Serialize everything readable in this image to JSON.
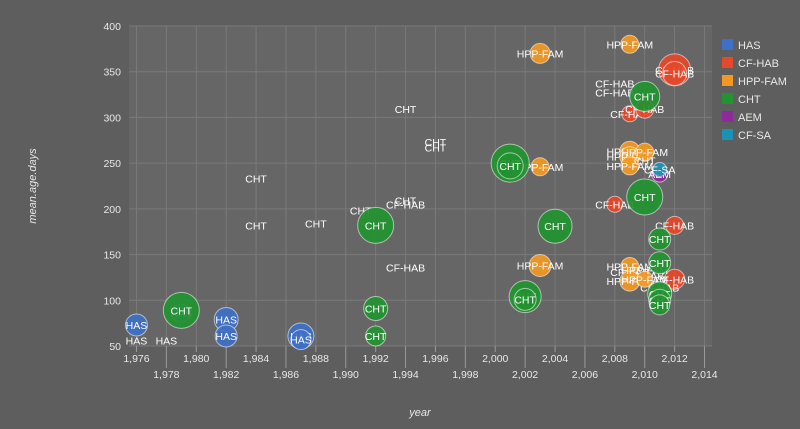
{
  "chart_data": {
    "type": "scatter",
    "title": "",
    "xlabel": "year",
    "ylabel": "mean.age.days",
    "xlim": [
      1975.5,
      2014.5
    ],
    "ylim": [
      50,
      400
    ],
    "xticks": [
      1976,
      1978,
      1980,
      1982,
      1984,
      1986,
      1988,
      1990,
      1992,
      1994,
      1996,
      1998,
      2000,
      2002,
      2004,
      2006,
      2008,
      2010,
      2012,
      2014
    ],
    "yticks": [
      50,
      100,
      150,
      200,
      250,
      300,
      350,
      400
    ],
    "grid": true,
    "legend_position": "right",
    "series": [
      {
        "name": "HAS",
        "color": "#3f6fc6",
        "points": [
          {
            "x": 1976,
            "y": 73,
            "size": 11
          },
          {
            "x": 1976,
            "y": 56,
            "size": 0
          },
          {
            "x": 1978,
            "y": 56,
            "size": 0
          },
          {
            "x": 1979,
            "y": 86,
            "size": 9
          },
          {
            "x": 1982,
            "y": 79,
            "size": 12
          },
          {
            "x": 1982,
            "y": 61,
            "size": 11
          },
          {
            "x": 1987,
            "y": 61,
            "size": 13
          },
          {
            "x": 1987,
            "y": 57,
            "size": 10
          }
        ]
      },
      {
        "name": "CF-HAB",
        "color": "#e5482a",
        "points": [
          {
            "x": 1994,
            "y": 205,
            "size": 0
          },
          {
            "x": 1994,
            "y": 136,
            "size": 0
          },
          {
            "x": 2008,
            "y": 337,
            "size": 0
          },
          {
            "x": 2008,
            "y": 327,
            "size": 0
          },
          {
            "x": 2008,
            "y": 205,
            "size": 8
          },
          {
            "x": 2009,
            "y": 304,
            "size": 8
          },
          {
            "x": 2010,
            "y": 309,
            "size": 9
          },
          {
            "x": 2012,
            "y": 352,
            "size": 16
          },
          {
            "x": 2012,
            "y": 348,
            "size": 12
          },
          {
            "x": 2012,
            "y": 182,
            "size": 9
          },
          {
            "x": 2012,
            "y": 123,
            "size": 10
          },
          {
            "x": 2009,
            "y": 131,
            "size": 0
          },
          {
            "x": 2010,
            "y": 127,
            "size": 0
          },
          {
            "x": 2011,
            "y": 114,
            "size": 0
          }
        ]
      },
      {
        "name": "HPP-FAM",
        "color": "#f39922",
        "points": [
          {
            "x": 2003,
            "y": 370,
            "size": 10
          },
          {
            "x": 2009,
            "y": 380,
            "size": 9
          },
          {
            "x": 2009,
            "y": 263,
            "size": 10
          },
          {
            "x": 2009,
            "y": 257,
            "size": 10
          },
          {
            "x": 2010,
            "y": 262,
            "size": 9
          },
          {
            "x": 2003,
            "y": 246,
            "size": 9
          },
          {
            "x": 2003,
            "y": 138,
            "size": 11
          },
          {
            "x": 2009,
            "y": 247,
            "size": 9
          },
          {
            "x": 2009,
            "y": 137,
            "size": 9
          },
          {
            "x": 2009,
            "y": 121,
            "size": 10
          },
          {
            "x": 2010,
            "y": 123,
            "size": 8
          },
          {
            "x": 2010,
            "y": 133,
            "size": 0
          }
        ]
      },
      {
        "name": "CHT",
        "color": "#229330",
        "points": [
          {
            "x": 1979,
            "y": 89,
            "size": 18
          },
          {
            "x": 1984,
            "y": 233,
            "size": 0
          },
          {
            "x": 1984,
            "y": 182,
            "size": 0
          },
          {
            "x": 1988,
            "y": 184,
            "size": 0
          },
          {
            "x": 1991,
            "y": 198,
            "size": 0
          },
          {
            "x": 1992,
            "y": 182,
            "size": 18
          },
          {
            "x": 1992,
            "y": 91,
            "size": 12
          },
          {
            "x": 1992,
            "y": 61,
            "size": 10
          },
          {
            "x": 1994,
            "y": 309,
            "size": 0
          },
          {
            "x": 1994,
            "y": 209,
            "size": 0
          },
          {
            "x": 1996,
            "y": 273,
            "size": 0
          },
          {
            "x": 1996,
            "y": 267,
            "size": 0
          },
          {
            "x": 2001,
            "y": 250,
            "size": 19
          },
          {
            "x": 2001,
            "y": 247,
            "size": 13
          },
          {
            "x": 2002,
            "y": 104,
            "size": 16
          },
          {
            "x": 2002,
            "y": 101,
            "size": 11
          },
          {
            "x": 2004,
            "y": 181,
            "size": 17
          },
          {
            "x": 2010,
            "y": 323,
            "size": 15
          },
          {
            "x": 2010,
            "y": 213,
            "size": 18
          },
          {
            "x": 2010,
            "y": 253,
            "size": 0
          },
          {
            "x": 2011,
            "y": 167,
            "size": 11
          },
          {
            "x": 2011,
            "y": 141,
            "size": 11
          },
          {
            "x": 2011,
            "y": 107,
            "size": 12
          },
          {
            "x": 2011,
            "y": 100,
            "size": 11
          },
          {
            "x": 2011,
            "y": 95,
            "size": 10
          }
        ]
      },
      {
        "name": "AEM",
        "color": "#8e2a9a",
        "points": [
          {
            "x": 2011,
            "y": 238,
            "size": 8
          }
        ]
      },
      {
        "name": "CF-SA",
        "color": "#1a92b4",
        "points": [
          {
            "x": 2011,
            "y": 243,
            "size": 7
          }
        ]
      }
    ]
  }
}
